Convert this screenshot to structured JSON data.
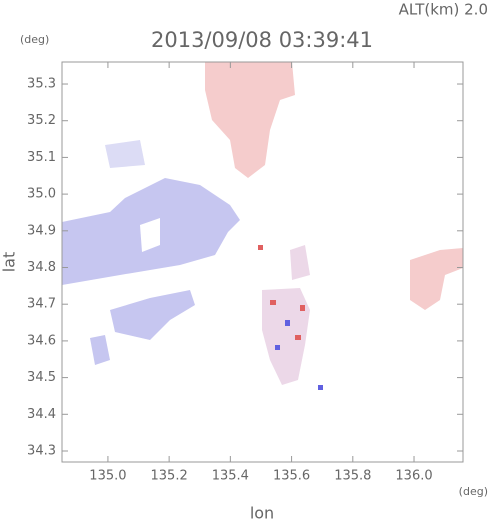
{
  "chart_data": {
    "type": "map",
    "title": "2013/09/08 03:39:41",
    "annotation": "ALT(km) 2.0",
    "y_unit": "(deg)",
    "x_unit": "(deg)",
    "xlabel": "lon",
    "ylabel": "lat",
    "xlim": [
      134.85,
      136.16
    ],
    "ylim": [
      34.27,
      35.36
    ],
    "xticks": [
      {
        "value": 135,
        "label": "135.0"
      },
      135.2,
      135.4,
      135.6,
      135.8,
      {
        "value": 136,
        "label": "136.0"
      }
    ],
    "yticks": [
      34.3,
      34.4,
      34.5,
      34.6,
      34.7,
      34.8,
      34.9,
      {
        "value": 35,
        "label": "35.0"
      },
      35.1,
      35.2,
      35.3
    ]
  }
}
